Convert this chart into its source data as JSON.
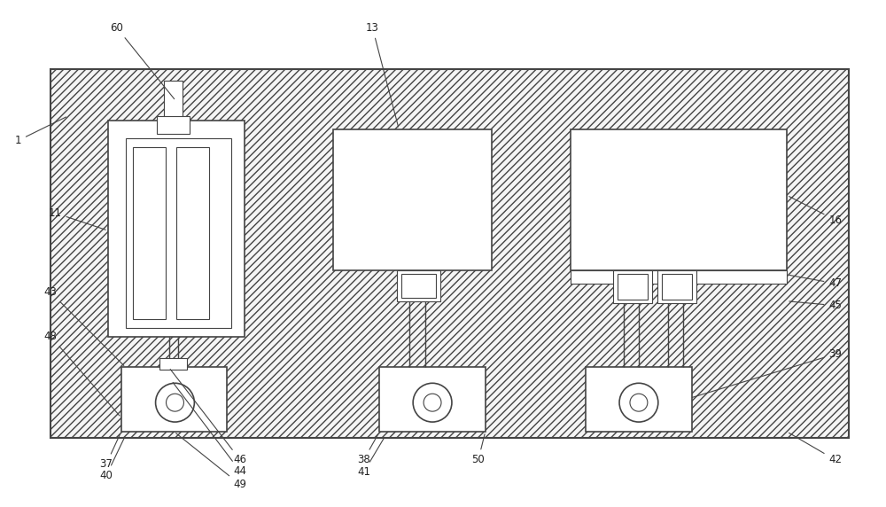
{
  "fig_width": 10.0,
  "fig_height": 5.72,
  "bg_color": "#ffffff",
  "border_color": "#444444",
  "hatch_density": "////",
  "hatch_fc": "#e8e8e8"
}
